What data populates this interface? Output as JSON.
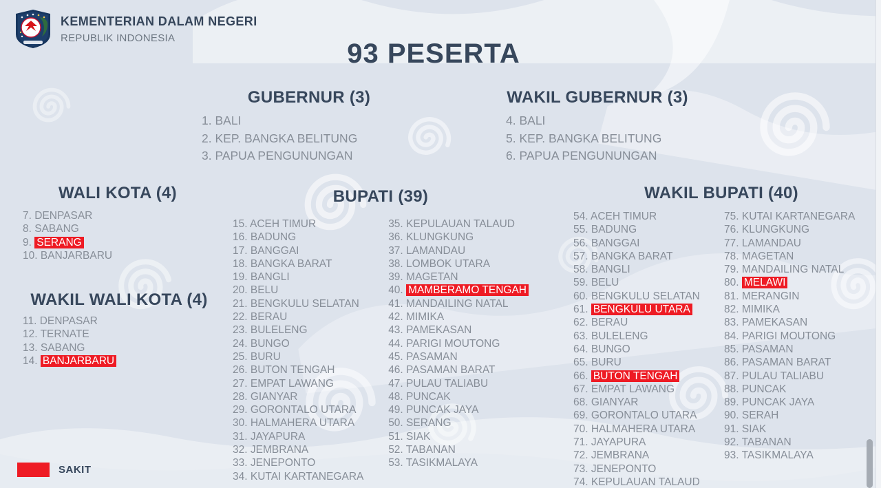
{
  "header": {
    "ministry": "KEMENTERIAN DALAM NEGERI",
    "republic": "REPUBLIK INDONESIA",
    "logo_icon": "kemendagri-shield-logo"
  },
  "title": "93 PESERTA",
  "colors": {
    "background": "#dde3ec",
    "heading_navy": "#37475c",
    "body_gray": "#878e98",
    "sick_red": "#ee1b24",
    "sick_text": "#ffffff"
  },
  "legend": {
    "swatch_icon": "red-box-swatch",
    "swatch_color": "#ee1b24",
    "label": "SAKIT"
  },
  "sections": [
    {
      "id": "gubernur",
      "title": "GUBERNUR (3)",
      "columns": [
        [
          {
            "num": 1,
            "name": "BALI",
            "sick": false
          },
          {
            "num": 2,
            "name": "KEP. BANGKA BELITUNG",
            "sick": false
          },
          {
            "num": 3,
            "name": "PAPUA PENGUNUNGAN",
            "sick": false
          }
        ]
      ]
    },
    {
      "id": "wakil-gubernur",
      "title": "WAKIL GUBERNUR (3)",
      "columns": [
        [
          {
            "num": 4,
            "name": "BALI",
            "sick": false
          },
          {
            "num": 5,
            "name": "KEP. BANGKA BELITUNG",
            "sick": false
          },
          {
            "num": 6,
            "name": "PAPUA PENGUNUNGAN",
            "sick": false
          }
        ]
      ]
    },
    {
      "id": "wali-kota",
      "title": "WALI KOTA (4)",
      "columns": [
        [
          {
            "num": 7,
            "name": "DENPASAR",
            "sick": false
          },
          {
            "num": 8,
            "name": "SABANG",
            "sick": false
          },
          {
            "num": 9,
            "name": "SERANG",
            "sick": true
          },
          {
            "num": 10,
            "name": "BANJARBARU",
            "sick": false
          }
        ]
      ]
    },
    {
      "id": "wakil-wali-kota",
      "title": "WAKIL WALI KOTA (4)",
      "columns": [
        [
          {
            "num": 11,
            "name": "DENPASAR",
            "sick": false
          },
          {
            "num": 12,
            "name": "TERNATE",
            "sick": false
          },
          {
            "num": 13,
            "name": "SABANG",
            "sick": false
          },
          {
            "num": 14,
            "name": "BANJARBARU",
            "sick": true
          }
        ]
      ]
    },
    {
      "id": "bupati",
      "title": "BUPATI (39)",
      "columns": [
        [
          {
            "num": 15,
            "name": "ACEH TIMUR",
            "sick": false
          },
          {
            "num": 16,
            "name": "BADUNG",
            "sick": false
          },
          {
            "num": 17,
            "name": "BANGGAI",
            "sick": false
          },
          {
            "num": 18,
            "name": "BANGKA BARAT",
            "sick": false
          },
          {
            "num": 19,
            "name": "BANGLI",
            "sick": false
          },
          {
            "num": 20,
            "name": "BELU",
            "sick": false
          },
          {
            "num": 21,
            "name": "BENGKULU SELATAN",
            "sick": false
          },
          {
            "num": 22,
            "name": "BERAU",
            "sick": false
          },
          {
            "num": 23,
            "name": "BULELENG",
            "sick": false
          },
          {
            "num": 24,
            "name": "BUNGO",
            "sick": false
          },
          {
            "num": 25,
            "name": "BURU",
            "sick": false
          },
          {
            "num": 26,
            "name": "BUTON TENGAH",
            "sick": false
          },
          {
            "num": 27,
            "name": "EMPAT LAWANG",
            "sick": false
          },
          {
            "num": 28,
            "name": "GIANYAR",
            "sick": false
          },
          {
            "num": 29,
            "name": "GORONTALO UTARA",
            "sick": false
          },
          {
            "num": 30,
            "name": "HALMAHERA UTARA",
            "sick": false
          },
          {
            "num": 31,
            "name": "JAYAPURA",
            "sick": false
          },
          {
            "num": 32,
            "name": "JEMBRANA",
            "sick": false
          },
          {
            "num": 33,
            "name": "JENEPONTO",
            "sick": false
          },
          {
            "num": 34,
            "name": "KUTAI KARTANEGARA",
            "sick": false
          }
        ],
        [
          {
            "num": 35,
            "name": "KEPULAUAN TALAUD",
            "sick": false
          },
          {
            "num": 36,
            "name": "KLUNGKUNG",
            "sick": false
          },
          {
            "num": 37,
            "name": "LAMANDAU",
            "sick": false
          },
          {
            "num": 38,
            "name": "LOMBOK UTARA",
            "sick": false
          },
          {
            "num": 39,
            "name": "MAGETAN",
            "sick": false
          },
          {
            "num": 40,
            "name": "MAMBERAMO TENGAH",
            "sick": true
          },
          {
            "num": 41,
            "name": "MANDAILING NATAL",
            "sick": false
          },
          {
            "num": 42,
            "name": "MIMIKA",
            "sick": false
          },
          {
            "num": 43,
            "name": "PAMEKASAN",
            "sick": false
          },
          {
            "num": 44,
            "name": "PARIGI MOUTONG",
            "sick": false
          },
          {
            "num": 45,
            "name": "PASAMAN",
            "sick": false
          },
          {
            "num": 46,
            "name": "PASAMAN BARAT",
            "sick": false
          },
          {
            "num": 47,
            "name": "PULAU TALIABU",
            "sick": false
          },
          {
            "num": 48,
            "name": "PUNCAK",
            "sick": false
          },
          {
            "num": 49,
            "name": "PUNCAK JAYA",
            "sick": false
          },
          {
            "num": 50,
            "name": "SERANG",
            "sick": false
          },
          {
            "num": 51,
            "name": "SIAK",
            "sick": false
          },
          {
            "num": 52,
            "name": "TABANAN",
            "sick": false
          },
          {
            "num": 53,
            "name": "TASIKMALAYA",
            "sick": false
          }
        ]
      ]
    },
    {
      "id": "wakil-bupati",
      "title": "WAKIL BUPATI (40)",
      "columns": [
        [
          {
            "num": 54,
            "name": "ACEH TIMUR",
            "sick": false
          },
          {
            "num": 55,
            "name": "BADUNG",
            "sick": false
          },
          {
            "num": 56,
            "name": "BANGGAI",
            "sick": false
          },
          {
            "num": 57,
            "name": "BANGKA BARAT",
            "sick": false
          },
          {
            "num": 58,
            "name": "BANGLI",
            "sick": false
          },
          {
            "num": 59,
            "name": "BELU",
            "sick": false
          },
          {
            "num": 60,
            "name": "BENGKULU SELATAN",
            "sick": false
          },
          {
            "num": 61,
            "name": "BENGKULU UTARA",
            "sick": true
          },
          {
            "num": 62,
            "name": "BERAU",
            "sick": false
          },
          {
            "num": 63,
            "name": "BULELENG",
            "sick": false
          },
          {
            "num": 64,
            "name": "BUNGO",
            "sick": false
          },
          {
            "num": 65,
            "name": "BURU",
            "sick": false
          },
          {
            "num": 66,
            "name": "BUTON TENGAH",
            "sick": true
          },
          {
            "num": 67,
            "name": "EMPAT LAWANG",
            "sick": false
          },
          {
            "num": 68,
            "name": "GIANYAR",
            "sick": false
          },
          {
            "num": 69,
            "name": "GORONTALO UTARA",
            "sick": false
          },
          {
            "num": 70,
            "name": "HALMAHERA UTARA",
            "sick": false
          },
          {
            "num": 71,
            "name": "JAYAPURA",
            "sick": false
          },
          {
            "num": 72,
            "name": "JEMBRANA",
            "sick": false
          },
          {
            "num": 73,
            "name": "JENEPONTO",
            "sick": false
          },
          {
            "num": 74,
            "name": "KEPULAUAN TALAUD",
            "sick": false
          }
        ],
        [
          {
            "num": 75,
            "name": "KUTAI KARTANEGARA",
            "sick": false
          },
          {
            "num": 76,
            "name": "KLUNGKUNG",
            "sick": false
          },
          {
            "num": 77,
            "name": "LAMANDAU",
            "sick": false
          },
          {
            "num": 78,
            "name": "MAGETAN",
            "sick": false
          },
          {
            "num": 79,
            "name": "MANDAILING NATAL",
            "sick": false
          },
          {
            "num": 80,
            "name": "MELAWI",
            "sick": true
          },
          {
            "num": 81,
            "name": "MERANGIN",
            "sick": false
          },
          {
            "num": 82,
            "name": "MIMIKA",
            "sick": false
          },
          {
            "num": 83,
            "name": "PAMEKASAN",
            "sick": false
          },
          {
            "num": 84,
            "name": "PARIGI MOUTONG",
            "sick": false
          },
          {
            "num": 85,
            "name": "PASAMAN",
            "sick": false
          },
          {
            "num": 86,
            "name": "PASAMAN BARAT",
            "sick": false
          },
          {
            "num": 87,
            "name": "PULAU TALIABU",
            "sick": false
          },
          {
            "num": 88,
            "name": "PUNCAK",
            "sick": false
          },
          {
            "num": 89,
            "name": "PUNCAK JAYA",
            "sick": false
          },
          {
            "num": 90,
            "name": "SERAH",
            "sick": false
          },
          {
            "num": 91,
            "name": "SIAK",
            "sick": false
          },
          {
            "num": 92,
            "name": "TABANAN",
            "sick": false
          },
          {
            "num": 93,
            "name": "TASIKMALAYA",
            "sick": false
          }
        ]
      ]
    }
  ]
}
